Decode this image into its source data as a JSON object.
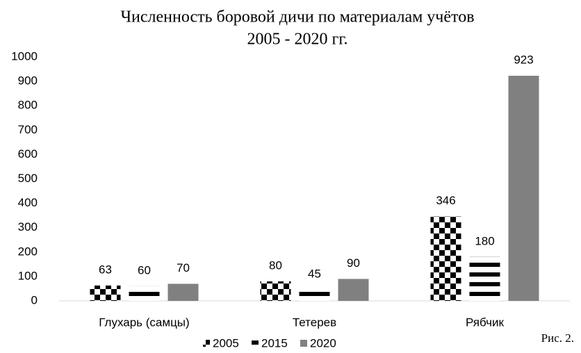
{
  "chart_data": {
    "type": "bar",
    "title": "Численность боровой дичи по материалам учётов",
    "subtitle": "2005 - 2020 гг.",
    "categories": [
      "Глухарь (самцы)",
      "Тетерев",
      "Рябчик"
    ],
    "series": [
      {
        "name": "2005",
        "color": "#000000",
        "pattern": "checker",
        "values": [
          63,
          80,
          346
        ]
      },
      {
        "name": "2015",
        "color": "#000000",
        "pattern": "stripes",
        "values": [
          60,
          45,
          180
        ]
      },
      {
        "name": "2020",
        "color": "#808080",
        "pattern": "solid",
        "values": [
          70,
          90,
          923
        ]
      }
    ],
    "ylim": [
      0,
      1000
    ],
    "yticks": [
      0,
      100,
      200,
      300,
      400,
      500,
      600,
      700,
      800,
      900,
      1000
    ],
    "grid": false,
    "legend": "bottom",
    "annotation": "Рис. 2."
  }
}
